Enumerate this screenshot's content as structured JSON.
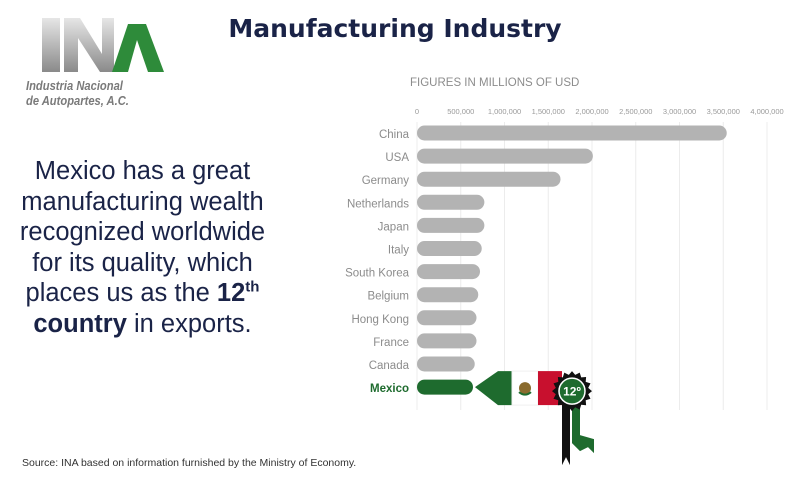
{
  "header": {
    "logo_text_line1": "Industria Nacional",
    "logo_text_line2": "de Autopartes, A.C.",
    "title": "Manufacturing Industry"
  },
  "intro": {
    "text_before": "Mexico has a great manufacturing wealth recognized worldwide for its quality, which places us as the ",
    "rank_number": "12",
    "rank_suffix": "th",
    "country_word": "country",
    "text_after": " in exports."
  },
  "footer": {
    "source": "Source: INA based on information furnished by the Ministry of Economy."
  },
  "badge": {
    "text": "12º"
  },
  "colors": {
    "title_navy": "#1a2347",
    "bar_gray": "#b3b3b3",
    "mexico_green": "#1e6b2e",
    "flag_red": "#c8102e",
    "badge_black": "#111111",
    "logo_green": "#2e8b3a"
  },
  "chart_data": {
    "type": "bar",
    "orientation": "horizontal",
    "title": "FIGURES IN MILLIONS OF USD",
    "xlim": [
      0,
      4000000
    ],
    "x_ticks": [
      "0",
      "500,000",
      "1,000,000",
      "1,500,000",
      "2,000,000",
      "2,500,000",
      "3,000,000",
      "3,500,000",
      "4,000,000"
    ],
    "categories": [
      "China",
      "USA",
      "Germany",
      "Netherlands",
      "Japan",
      "Italy",
      "South Korea",
      "Belgium",
      "Hong Kong",
      "France",
      "Canada",
      "Mexico"
    ],
    "values": [
      3540000,
      2010000,
      1640000,
      770000,
      770000,
      740000,
      720000,
      700000,
      680000,
      680000,
      660000,
      640000
    ],
    "highlight": "Mexico",
    "grid": true
  }
}
